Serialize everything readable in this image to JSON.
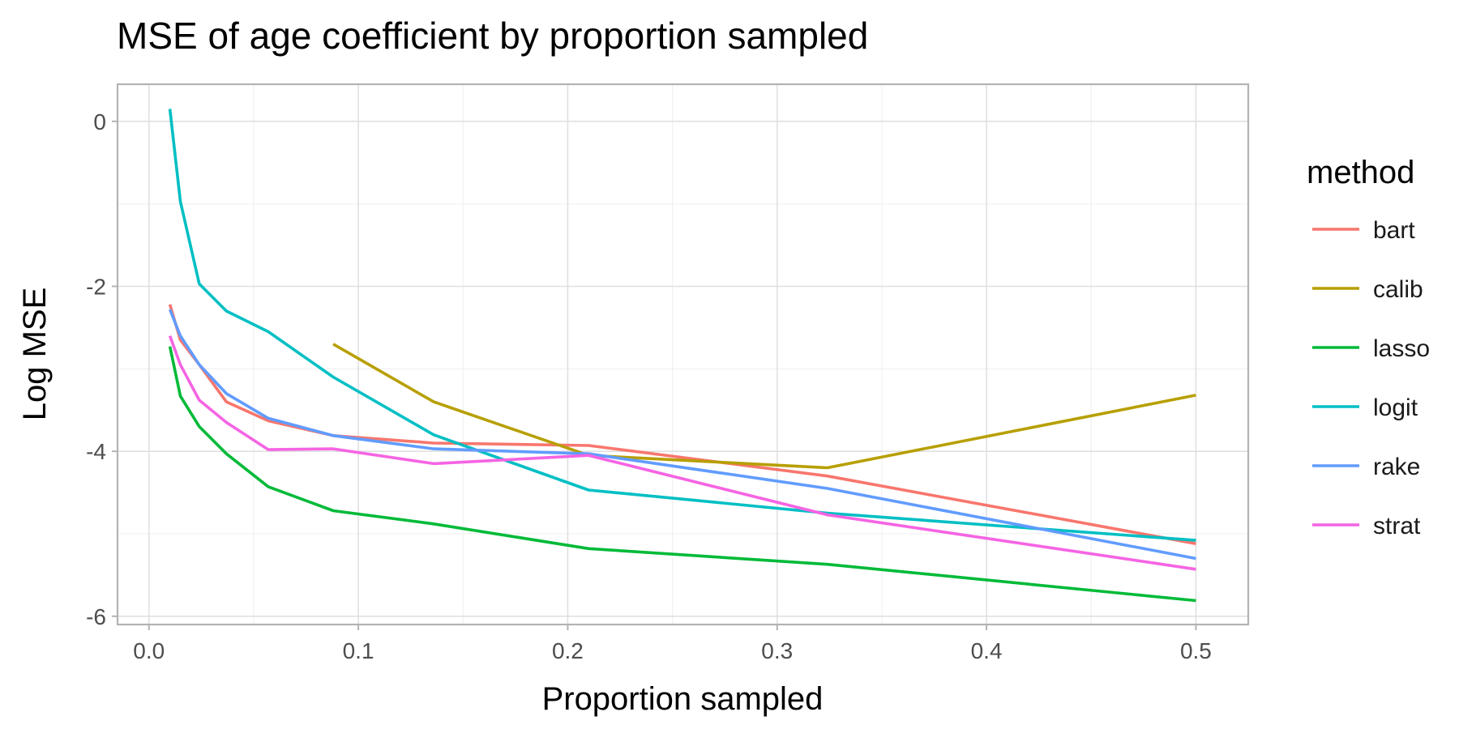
{
  "chart_data": {
    "type": "line",
    "title": "MSE of age coefficient by proportion sampled",
    "xlabel": "Proportion sampled",
    "ylabel": "Log MSE",
    "xlim": [
      -0.015,
      0.525
    ],
    "ylim": [
      -6.1,
      0.45
    ],
    "x_ticks": [
      0.0,
      0.1,
      0.2,
      0.3,
      0.4,
      0.5
    ],
    "x_tick_labels": [
      "0.0",
      "0.1",
      "0.2",
      "0.3",
      "0.4",
      "0.5"
    ],
    "y_ticks": [
      0,
      -2,
      -4,
      -6
    ],
    "y_tick_labels": [
      "0",
      "-2",
      "-4",
      "-6"
    ],
    "grid": true,
    "legend": {
      "title": "method",
      "position": "right"
    },
    "series": [
      {
        "name": "bart",
        "color": "#F8766D",
        "x": [
          0.01,
          0.015,
          0.024,
          0.037,
          0.057,
          0.088,
          0.136,
          0.21,
          0.324,
          0.5
        ],
        "y": [
          -2.22,
          -2.65,
          -2.95,
          -3.4,
          -3.63,
          -3.81,
          -3.9,
          -3.93,
          -4.3,
          -5.12
        ]
      },
      {
        "name": "calib",
        "color": "#B79F00",
        "x": [
          0.088,
          0.136,
          0.21,
          0.324,
          0.5
        ],
        "y": [
          -2.7,
          -3.4,
          -4.05,
          -4.2,
          -3.32
        ]
      },
      {
        "name": "lasso",
        "color": "#00BA38",
        "x": [
          0.01,
          0.015,
          0.024,
          0.037,
          0.057,
          0.088,
          0.136,
          0.21,
          0.324,
          0.5
        ],
        "y": [
          -2.73,
          -3.33,
          -3.7,
          -4.03,
          -4.43,
          -4.72,
          -4.88,
          -5.18,
          -5.37,
          -5.81
        ]
      },
      {
        "name": "logit",
        "color": "#00BFC4",
        "x": [
          0.01,
          0.015,
          0.024,
          0.037,
          0.057,
          0.088,
          0.136,
          0.21,
          0.324,
          0.5
        ],
        "y": [
          0.15,
          -0.97,
          -1.97,
          -2.3,
          -2.55,
          -3.1,
          -3.8,
          -4.47,
          -4.75,
          -5.08
        ]
      },
      {
        "name": "rake",
        "color": "#619CFF",
        "x": [
          0.01,
          0.015,
          0.024,
          0.037,
          0.057,
          0.088,
          0.136,
          0.21,
          0.324,
          0.5
        ],
        "y": [
          -2.28,
          -2.6,
          -2.95,
          -3.3,
          -3.6,
          -3.81,
          -3.97,
          -4.03,
          -4.45,
          -5.3
        ]
      },
      {
        "name": "strat",
        "color": "#F564E3",
        "x": [
          0.01,
          0.015,
          0.024,
          0.037,
          0.057,
          0.088,
          0.136,
          0.21,
          0.324,
          0.5
        ],
        "y": [
          -2.6,
          -2.95,
          -3.38,
          -3.65,
          -3.98,
          -3.97,
          -4.15,
          -4.05,
          -4.77,
          -5.43
        ]
      }
    ]
  }
}
